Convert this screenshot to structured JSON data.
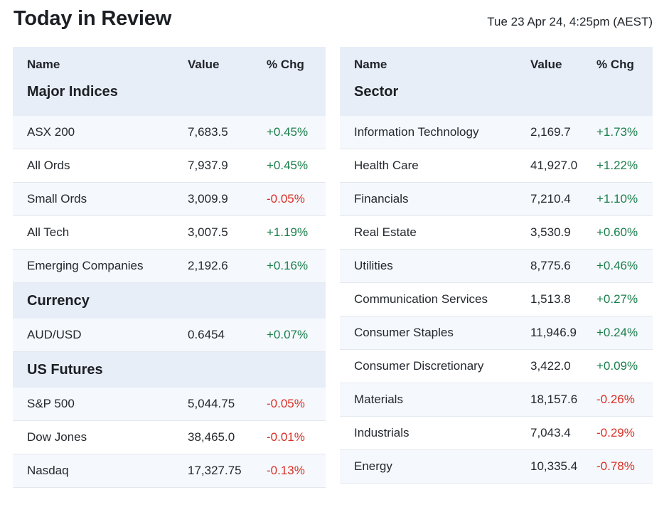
{
  "header": {
    "title": "Today in Review",
    "timestamp": "Tue 23 Apr 24, 4:25pm (AEST)"
  },
  "colors": {
    "positive": "#1a7f4b",
    "negative": "#d93025",
    "header_bg": "#e8eef7"
  },
  "left_table": {
    "columns": {
      "name": "Name",
      "value": "Value",
      "chg": "% Chg"
    },
    "sections": [
      {
        "title": "Major Indices",
        "rows": [
          {
            "name": "ASX 200",
            "value": "7,683.5",
            "chg": "+0.45%"
          },
          {
            "name": "All Ords",
            "value": "7,937.9",
            "chg": "+0.45%"
          },
          {
            "name": "Small Ords",
            "value": "3,009.9",
            "chg": "-0.05%"
          },
          {
            "name": "All Tech",
            "value": "3,007.5",
            "chg": "+1.19%"
          },
          {
            "name": "Emerging Companies",
            "value": "2,192.6",
            "chg": "+0.16%"
          }
        ]
      },
      {
        "title": "Currency",
        "rows": [
          {
            "name": "AUD/USD",
            "value": "0.6454",
            "chg": "+0.07%"
          }
        ]
      },
      {
        "title": "US Futures",
        "rows": [
          {
            "name": "S&P 500",
            "value": "5,044.75",
            "chg": "-0.05%"
          },
          {
            "name": "Dow Jones",
            "value": "38,465.0",
            "chg": "-0.01%"
          },
          {
            "name": "Nasdaq",
            "value": "17,327.75",
            "chg": "-0.13%"
          }
        ]
      }
    ]
  },
  "right_table": {
    "columns": {
      "name": "Name",
      "value": "Value",
      "chg": "% Chg"
    },
    "section_title": "Sector",
    "rows": [
      {
        "name": "Information Technology",
        "value": "2,169.7",
        "chg": "+1.73%"
      },
      {
        "name": "Health Care",
        "value": "41,927.0",
        "chg": "+1.22%"
      },
      {
        "name": "Financials",
        "value": "7,210.4",
        "chg": "+1.10%"
      },
      {
        "name": "Real Estate",
        "value": "3,530.9",
        "chg": "+0.60%"
      },
      {
        "name": "Utilities",
        "value": "8,775.6",
        "chg": "+0.46%"
      },
      {
        "name": "Communication Services",
        "value": "1,513.8",
        "chg": "+0.27%"
      },
      {
        "name": "Consumer Staples",
        "value": "11,946.9",
        "chg": "+0.24%"
      },
      {
        "name": "Consumer Discretionary",
        "value": "3,422.0",
        "chg": "+0.09%"
      },
      {
        "name": "Materials",
        "value": "18,157.6",
        "chg": "-0.26%"
      },
      {
        "name": "Industrials",
        "value": "7,043.4",
        "chg": "-0.29%"
      },
      {
        "name": "Energy",
        "value": "10,335.4",
        "chg": "-0.78%"
      }
    ]
  }
}
